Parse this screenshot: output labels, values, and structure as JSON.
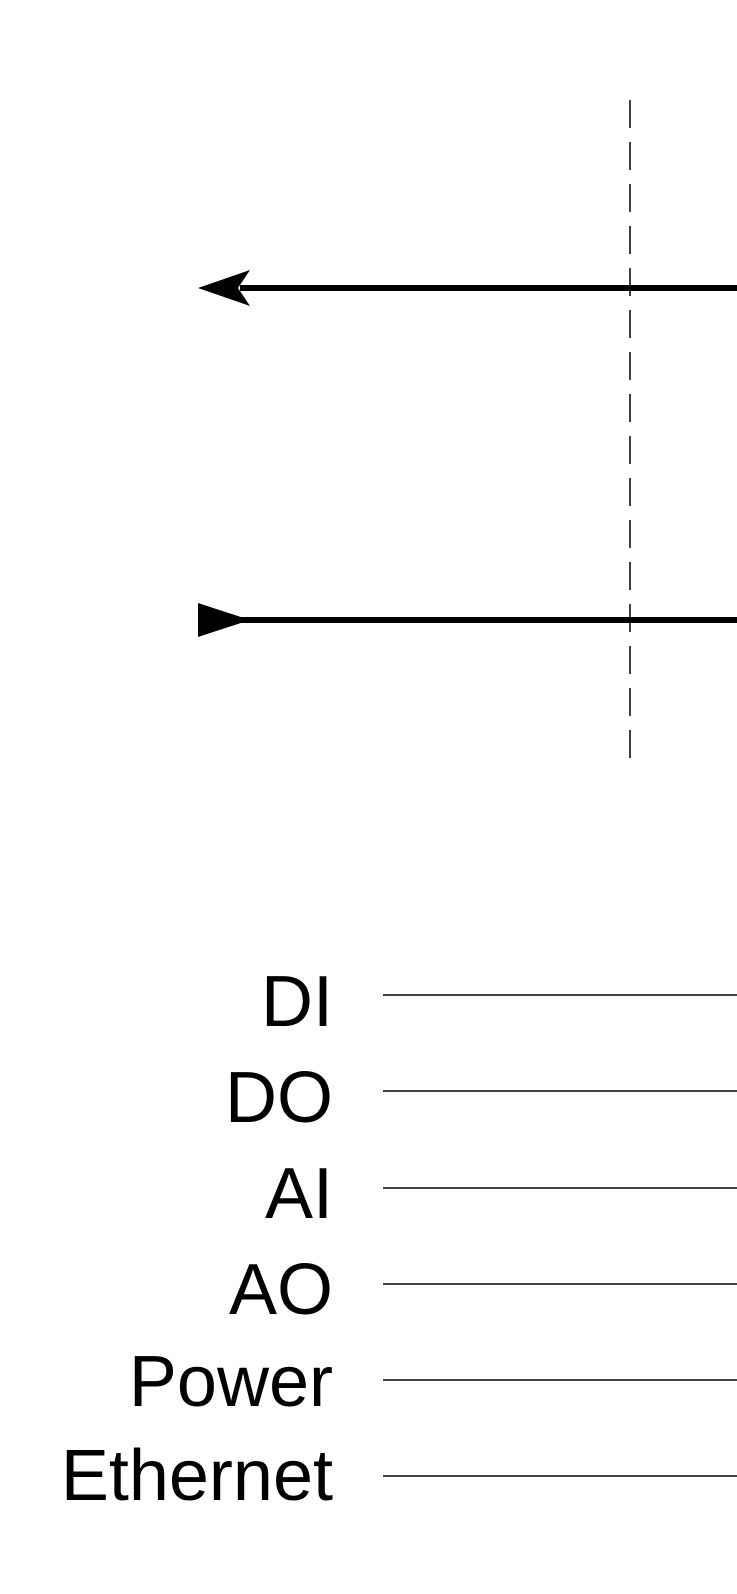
{
  "colors": {
    "background": "#ffffff",
    "ink": "#000000"
  },
  "diagram": {
    "arrows": [
      {
        "direction": "left",
        "head": "open-arrow-icon"
      },
      {
        "direction": "right",
        "head": "filled-arrow-icon"
      }
    ],
    "legend": {
      "items": [
        {
          "label": "DI"
        },
        {
          "label": "DO"
        },
        {
          "label": "AI"
        },
        {
          "label": "AO"
        },
        {
          "label": "Power"
        },
        {
          "label": "Ethernet"
        }
      ]
    }
  }
}
